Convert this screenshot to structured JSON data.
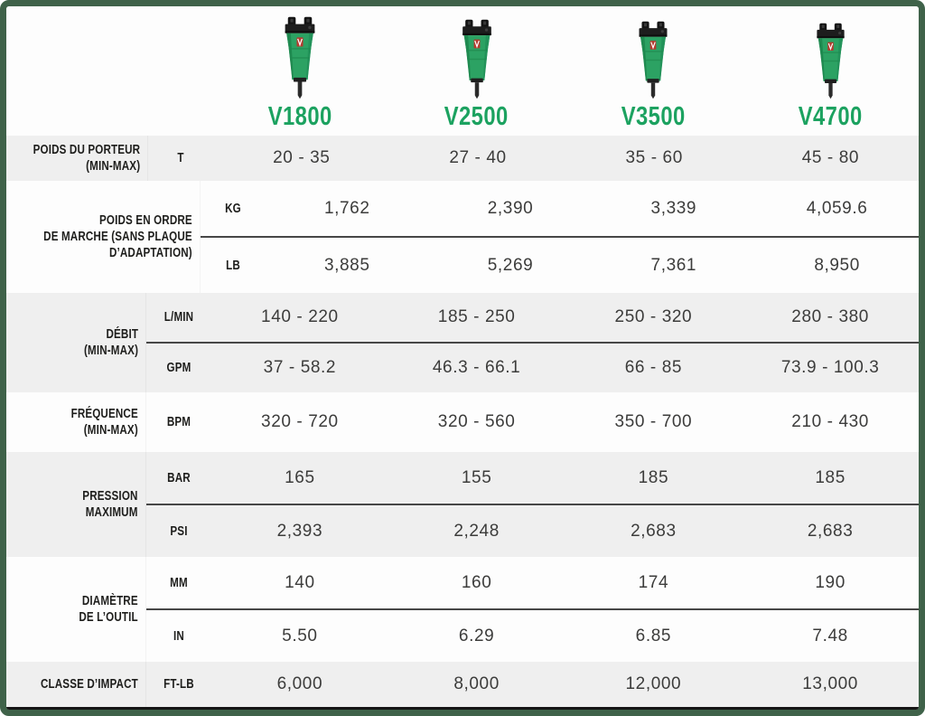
{
  "theme": {
    "border_green": "#3f6249",
    "brand_green": "#1ca260",
    "row_gray": "#efefef",
    "row_white": "#fdfdfd",
    "label_text": "#1d1d1b",
    "value_text": "#3c3c3b",
    "divider": "#474747",
    "bottom_line": "#151515"
  },
  "models": [
    {
      "name": "V1800"
    },
    {
      "name": "V2500"
    },
    {
      "name": "V3500"
    },
    {
      "name": "V4700"
    }
  ],
  "rows": [
    {
      "label_lines": [
        "POIDS DU PORTEUR",
        "(MIN-MAX)"
      ],
      "shade": "gray",
      "subrows": [
        {
          "unit": "T",
          "values": [
            "20 - 35",
            "27 - 40",
            "35 - 60",
            "45 - 80"
          ]
        }
      ]
    },
    {
      "label_lines": [
        "POIDS EN ORDRE",
        "DE MARCHE (SANS PLAQUE",
        "D’ADAPTATION)"
      ],
      "shade": "white",
      "subrows": [
        {
          "unit": "KG",
          "values": [
            "1,762",
            "2,390",
            "3,339",
            "4,059.6"
          ]
        },
        {
          "unit": "LB",
          "values": [
            "3,885",
            "5,269",
            "7,361",
            "8,950"
          ]
        }
      ]
    },
    {
      "label_lines": [
        "DÉBIT",
        "(MIN-MAX)"
      ],
      "shade": "gray",
      "subrows": [
        {
          "unit": "L/MIN",
          "values": [
            "140 - 220",
            "185 - 250",
            "250 - 320",
            "280 - 380"
          ]
        },
        {
          "unit": "GPM",
          "values": [
            "37 - 58.2",
            "46.3 - 66.1",
            "66 - 85",
            "73.9 - 100.3"
          ]
        }
      ]
    },
    {
      "label_lines": [
        "FRÉQUENCE",
        "(MIN-MAX)"
      ],
      "shade": "white",
      "subrows": [
        {
          "unit": "BPM",
          "values": [
            "320 - 720",
            "320 - 560",
            "350 - 700",
            "210 - 430"
          ]
        }
      ]
    },
    {
      "label_lines": [
        "PRESSION",
        "MAXIMUM"
      ],
      "shade": "gray",
      "subrows": [
        {
          "unit": "BAR",
          "values": [
            "165",
            "155",
            "185",
            "185"
          ]
        },
        {
          "unit": "PSI",
          "values": [
            "2,393",
            "2,248",
            "2,683",
            "2,683"
          ]
        }
      ]
    },
    {
      "label_lines": [
        "DIAMÈTRE",
        "DE L’OUTIL"
      ],
      "shade": "white",
      "subrows": [
        {
          "unit": "MM",
          "values": [
            "140",
            "160",
            "174",
            "190"
          ]
        },
        {
          "unit": "IN",
          "values": [
            "5.50",
            "6.29",
            "6.85",
            "7.48"
          ]
        }
      ]
    },
    {
      "label_lines": [
        "CLASSE D’IMPACT"
      ],
      "shade": "gray",
      "subrows": [
        {
          "unit": "FT-LB",
          "values": [
            "6,000",
            "8,000",
            "12,000",
            "13,000"
          ]
        }
      ]
    }
  ]
}
